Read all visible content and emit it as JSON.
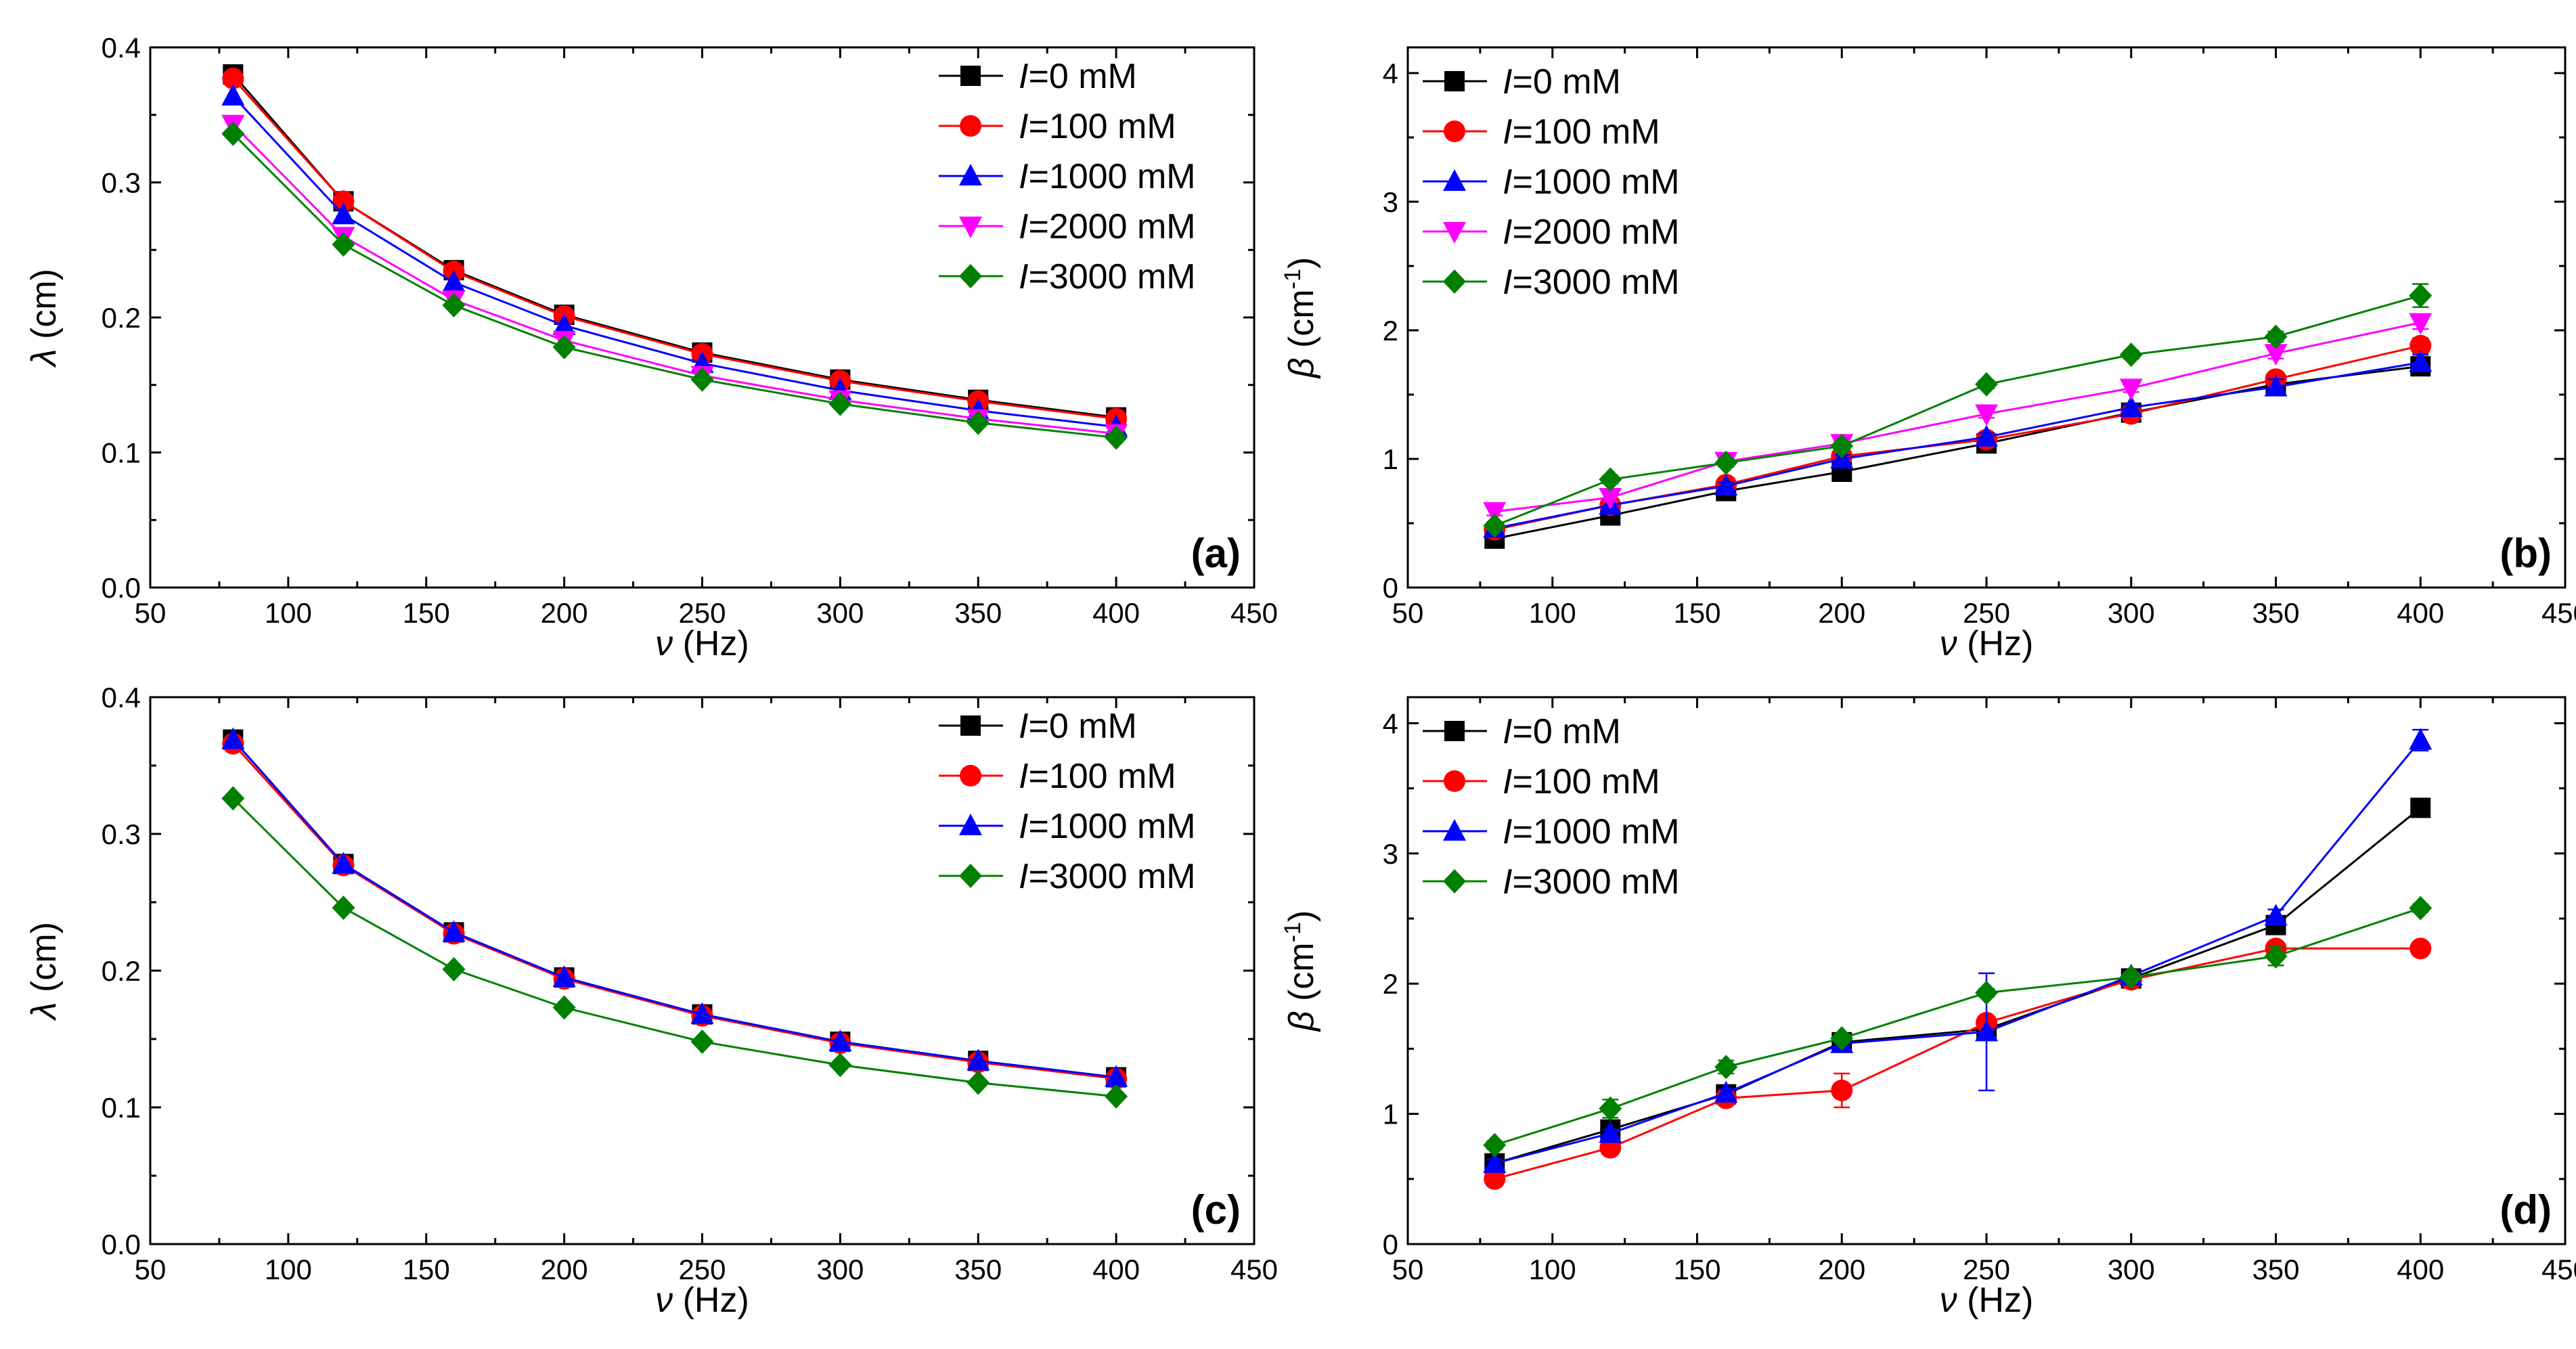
{
  "figure": {
    "panels": [
      "(a)",
      "(b)",
      "(c)",
      "(d)"
    ]
  },
  "colors": {
    "0 mM": "#000000",
    "100 mM": "#ff0000",
    "1000 mM": "#0000ff",
    "2000 mM": "#ff00ff",
    "3000 mM": "#008000"
  },
  "chart_data": [
    {
      "panel": "(a)",
      "type": "line",
      "xlabel_sym": "ν",
      "xlabel_unit": " (Hz)",
      "ylabel_sym": "λ",
      "ylabel_unit": " (cm)",
      "xlim": [
        50,
        450
      ],
      "ylim": [
        0,
        0.4
      ],
      "xticks": [
        50,
        100,
        150,
        200,
        250,
        300,
        350,
        400,
        450
      ],
      "yticks": [
        0.0,
        0.1,
        0.2,
        0.3,
        0.4
      ],
      "ytick_labels": [
        "0.0",
        "0.1",
        "0.2",
        "0.3",
        "0.4"
      ],
      "legend_position": "top-right",
      "x": [
        80,
        120,
        160,
        200,
        250,
        300,
        350,
        400
      ],
      "series": [
        {
          "name": "=0 mM",
          "prefix": "I",
          "marker": "square",
          "color": "#000000",
          "values": [
            0.38,
            0.286,
            0.235,
            0.202,
            0.174,
            0.154,
            0.139,
            0.126
          ]
        },
        {
          "name": "=100 mM",
          "prefix": "I",
          "marker": "circle",
          "color": "#ff0000",
          "values": [
            0.377,
            0.286,
            0.234,
            0.201,
            0.173,
            0.153,
            0.138,
            0.125
          ]
        },
        {
          "name": "=1000 mM",
          "prefix": "I",
          "marker": "triangle-up",
          "color": "#0000ff",
          "values": [
            0.364,
            0.276,
            0.226,
            0.194,
            0.166,
            0.146,
            0.131,
            0.119
          ]
        },
        {
          "name": "=2000 mM",
          "prefix": "I",
          "marker": "triangle-down",
          "color": "#ff00ff",
          "values": [
            0.343,
            0.26,
            0.213,
            0.183,
            0.157,
            0.139,
            0.125,
            0.114
          ]
        },
        {
          "name": "=3000 mM",
          "prefix": "I",
          "marker": "diamond",
          "color": "#008000",
          "values": [
            0.336,
            0.254,
            0.209,
            0.178,
            0.154,
            0.136,
            0.122,
            0.111
          ]
        }
      ]
    },
    {
      "panel": "(b)",
      "type": "line",
      "xlabel_sym": "ν",
      "xlabel_unit": " (Hz)",
      "ylabel_sym": "β",
      "ylabel_unit": " (cm",
      "ylabel_sup": "-1",
      "ylabel_end": ")",
      "xlim": [
        50,
        450
      ],
      "ylim": [
        0,
        4.2
      ],
      "xticks": [
        50,
        100,
        150,
        200,
        250,
        300,
        350,
        400,
        450
      ],
      "yticks": [
        0,
        1,
        2,
        3,
        4
      ],
      "ytick_labels": [
        "0",
        "1",
        "2",
        "3",
        "4"
      ],
      "legend_position": "top-left",
      "x": [
        80,
        120,
        160,
        200,
        250,
        300,
        350,
        400
      ],
      "series": [
        {
          "name": "=0 mM",
          "prefix": "I",
          "marker": "square",
          "color": "#000000",
          "values": [
            0.38,
            0.56,
            0.75,
            0.9,
            1.12,
            1.36,
            1.58,
            1.72
          ],
          "errors": [
            0.03,
            0.03,
            0.03,
            0.03,
            0.03,
            0.03,
            0.05,
            0.07
          ]
        },
        {
          "name": "=100 mM",
          "prefix": "I",
          "marker": "circle",
          "color": "#ff0000",
          "values": [
            0.45,
            0.64,
            0.8,
            1.02,
            1.15,
            1.35,
            1.62,
            1.88
          ],
          "errors": [
            0.03,
            0.03,
            0.03,
            0.03,
            0.03,
            0.03,
            0.05,
            0.06
          ]
        },
        {
          "name": "=1000 mM",
          "prefix": "I",
          "marker": "triangle-up",
          "color": "#0000ff",
          "values": [
            0.46,
            0.64,
            0.79,
            1.0,
            1.17,
            1.4,
            1.56,
            1.75
          ],
          "errors": [
            0.03,
            0.03,
            0.03,
            0.03,
            0.03,
            0.03,
            0.06,
            0.06
          ]
        },
        {
          "name": "=2000 mM",
          "prefix": "I",
          "marker": "triangle-down",
          "color": "#ff00ff",
          "values": [
            0.59,
            0.7,
            0.98,
            1.12,
            1.35,
            1.55,
            1.82,
            2.06
          ],
          "errors": [
            0.03,
            0.03,
            0.03,
            0.03,
            0.03,
            0.03,
            0.04,
            0.05
          ]
        },
        {
          "name": "=3000 mM",
          "prefix": "I",
          "marker": "diamond",
          "color": "#008000",
          "values": [
            0.48,
            0.84,
            0.97,
            1.1,
            1.58,
            1.81,
            1.95,
            2.27
          ],
          "errors": [
            0.03,
            0.03,
            0.03,
            0.03,
            0.03,
            0.03,
            0.04,
            0.09
          ]
        }
      ]
    },
    {
      "panel": "(c)",
      "type": "line",
      "xlabel_sym": "ν",
      "xlabel_unit": " (Hz)",
      "ylabel_sym": "λ",
      "ylabel_unit": " (cm)",
      "xlim": [
        50,
        450
      ],
      "ylim": [
        0,
        0.4
      ],
      "xticks": [
        50,
        100,
        150,
        200,
        250,
        300,
        350,
        400,
        450
      ],
      "yticks": [
        0.0,
        0.1,
        0.2,
        0.3,
        0.4
      ],
      "ytick_labels": [
        "0.0",
        "0.1",
        "0.2",
        "0.3",
        "0.4"
      ],
      "legend_position": "top-right",
      "x": [
        80,
        120,
        160,
        200,
        250,
        300,
        350,
        400
      ],
      "series": [
        {
          "name": "=0 mM",
          "prefix": "I",
          "marker": "square",
          "color": "#000000",
          "values": [
            0.369,
            0.278,
            0.228,
            0.195,
            0.168,
            0.148,
            0.134,
            0.122
          ]
        },
        {
          "name": "=100 mM",
          "prefix": "I",
          "marker": "circle",
          "color": "#ff0000",
          "values": [
            0.366,
            0.277,
            0.227,
            0.194,
            0.167,
            0.147,
            0.133,
            0.121
          ]
        },
        {
          "name": "=1000 mM",
          "prefix": "I",
          "marker": "triangle-up",
          "color": "#0000ff",
          "values": [
            0.369,
            0.278,
            0.228,
            0.195,
            0.168,
            0.148,
            0.134,
            0.122
          ]
        },
        {
          "name": "=3000 mM",
          "prefix": "I",
          "marker": "diamond",
          "color": "#008000",
          "values": [
            0.326,
            0.246,
            0.201,
            0.173,
            0.148,
            0.131,
            0.118,
            0.108
          ]
        }
      ]
    },
    {
      "panel": "(d)",
      "type": "line",
      "xlabel_sym": "ν",
      "xlabel_unit": " (Hz)",
      "ylabel_sym": "β",
      "ylabel_unit": " (cm",
      "ylabel_sup": "-1",
      "ylabel_end": ")",
      "xlim": [
        50,
        450
      ],
      "ylim": [
        0,
        4.2
      ],
      "xticks": [
        50,
        100,
        150,
        200,
        250,
        300,
        350,
        400,
        450
      ],
      "yticks": [
        0,
        1,
        2,
        3,
        4
      ],
      "ytick_labels": [
        "0",
        "1",
        "2",
        "3",
        "4"
      ],
      "legend_position": "top-left",
      "x": [
        80,
        120,
        160,
        200,
        250,
        300,
        350,
        400
      ],
      "series": [
        {
          "name": "=0 mM",
          "prefix": "I",
          "marker": "square",
          "color": "#000000",
          "values": [
            0.62,
            0.88,
            1.15,
            1.55,
            1.65,
            2.04,
            2.45,
            3.35
          ],
          "errors": [
            0.03,
            0.03,
            0.03,
            0.03,
            0.03,
            0.03,
            0.04,
            0.04
          ]
        },
        {
          "name": "=100 mM",
          "prefix": "I",
          "marker": "circle",
          "color": "#ff0000",
          "values": [
            0.5,
            0.74,
            1.12,
            1.18,
            1.7,
            2.03,
            2.27,
            2.27
          ],
          "errors": [
            0.03,
            0.03,
            0.03,
            0.13,
            0.03,
            0.03,
            0.03,
            0.03
          ]
        },
        {
          "name": "=1000 mM",
          "prefix": "I",
          "marker": "triangle-up",
          "color": "#0000ff",
          "values": [
            0.62,
            0.85,
            1.16,
            1.54,
            1.63,
            2.06,
            2.52,
            3.87
          ],
          "errors": [
            0.03,
            0.03,
            0.03,
            0.04,
            0.45,
            0.03,
            0.05,
            0.08
          ]
        },
        {
          "name": "=3000 mM",
          "prefix": "I",
          "marker": "diamond",
          "color": "#008000",
          "values": [
            0.76,
            1.04,
            1.36,
            1.58,
            1.93,
            2.05,
            2.21,
            2.58
          ],
          "errors": [
            0.03,
            0.07,
            0.05,
            0.03,
            0.03,
            0.03,
            0.07,
            0.03
          ]
        }
      ]
    }
  ]
}
